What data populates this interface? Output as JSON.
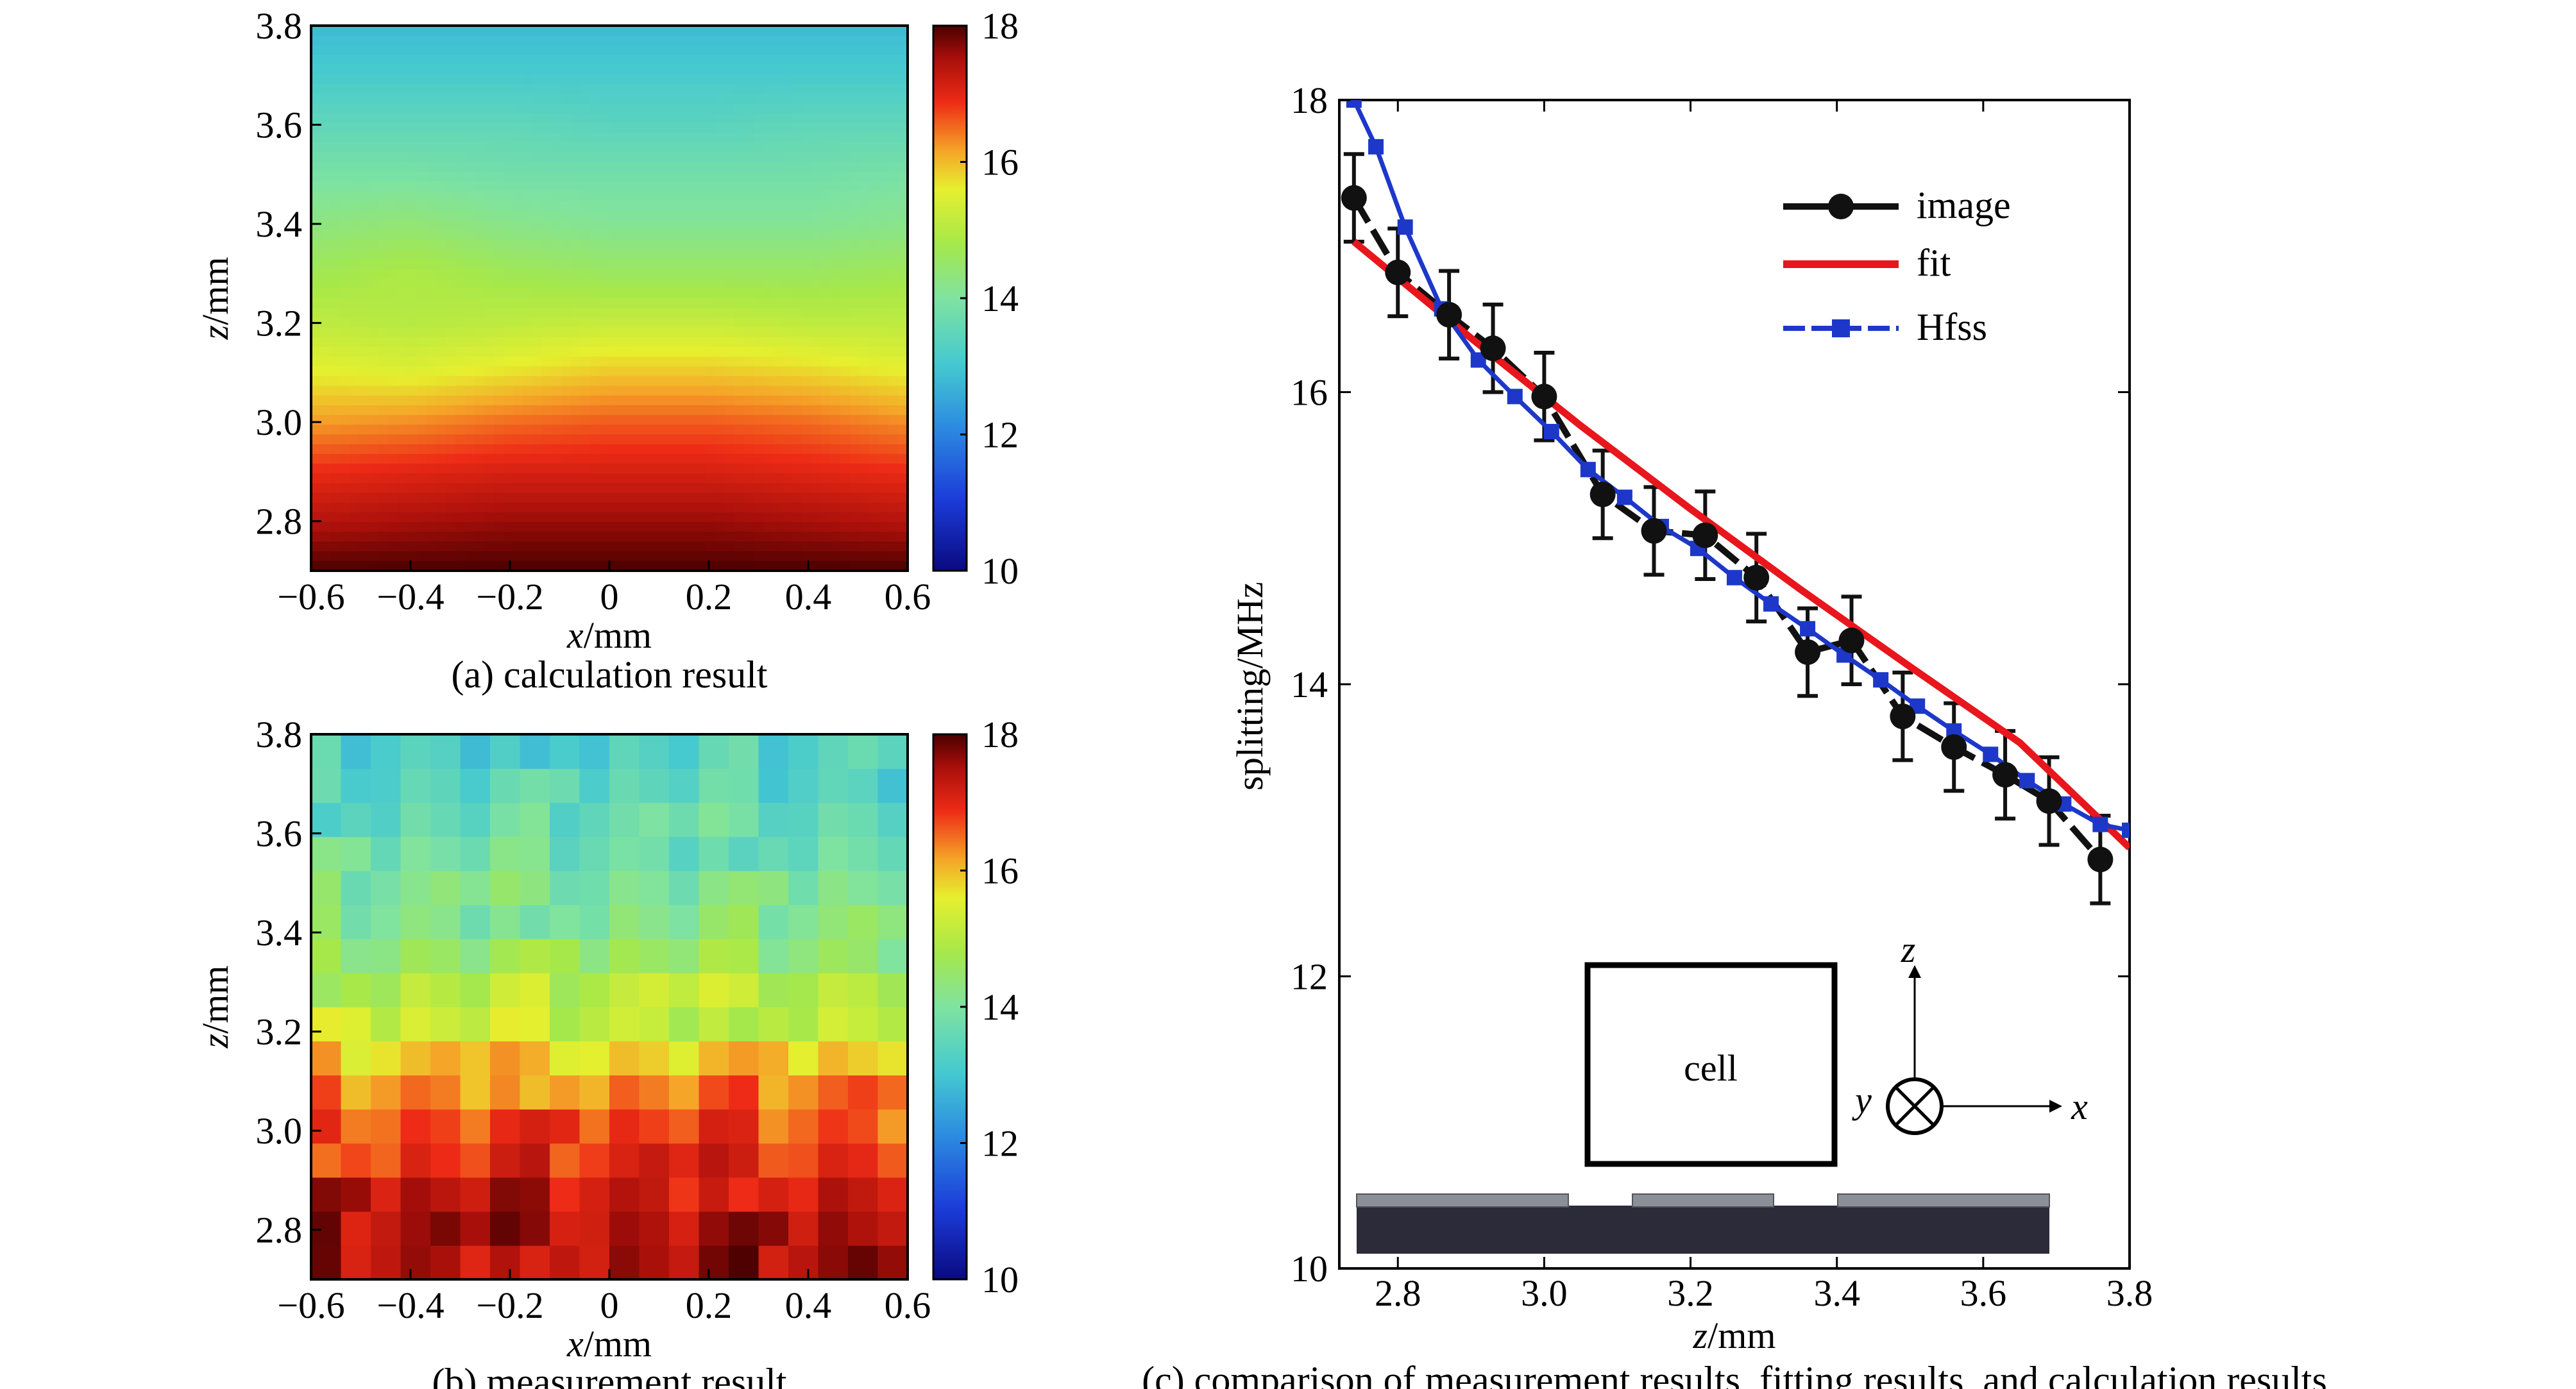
{
  "chart_data": [
    {
      "id": "a",
      "type": "heatmap",
      "caption": "(a) calculation result",
      "xlabel_var": "x",
      "xlabel_unit": "/mm",
      "ylabel_var": "z",
      "ylabel_unit": "/mm",
      "xlim": [
        -0.6,
        0.6
      ],
      "ylim": [
        2.7,
        3.8
      ],
      "x_ticks": [
        "−0.6",
        "−0.4",
        "−0.2",
        "0",
        "0.2",
        "0.4",
        "0.6"
      ],
      "y_ticks": [
        "2.8",
        "3.0",
        "3.2",
        "3.4",
        "3.6",
        "3.8"
      ],
      "colorbar": {
        "range": [
          10,
          18
        ],
        "ticks": [
          "10",
          "12",
          "14",
          "16",
          "18"
        ]
      },
      "x": [
        -0.6,
        -0.4,
        -0.2,
        0.0,
        0.2,
        0.4,
        0.6
      ],
      "z": [
        2.7,
        2.8,
        2.9,
        3.0,
        3.1,
        3.2,
        3.3,
        3.4,
        3.5,
        3.6,
        3.7,
        3.8
      ],
      "values": [
        [
          18.0,
          18.0,
          18.0,
          18.0,
          18.0,
          18.0,
          18.0
        ],
        [
          17.4,
          17.5,
          17.6,
          17.6,
          17.6,
          17.5,
          17.4
        ],
        [
          16.9,
          17.0,
          17.1,
          17.1,
          17.1,
          17.0,
          16.9
        ],
        [
          16.2,
          16.3,
          16.5,
          16.6,
          16.6,
          16.5,
          16.3
        ],
        [
          15.6,
          15.5,
          15.7,
          15.9,
          15.9,
          15.8,
          15.6
        ],
        [
          15.1,
          15.0,
          15.1,
          15.2,
          15.2,
          15.1,
          15.1
        ],
        [
          14.7,
          14.9,
          14.7,
          14.6,
          14.6,
          14.6,
          14.7
        ],
        [
          14.3,
          14.4,
          14.2,
          14.1,
          14.1,
          14.1,
          14.2
        ],
        [
          13.9,
          13.9,
          13.8,
          13.8,
          13.8,
          13.8,
          13.9
        ],
        [
          13.5,
          13.5,
          13.5,
          13.4,
          13.4,
          13.5,
          13.5
        ],
        [
          13.1,
          13.1,
          13.1,
          13.1,
          13.1,
          13.1,
          13.1
        ],
        [
          12.8,
          12.8,
          12.8,
          12.8,
          12.8,
          12.8,
          12.8
        ]
      ]
    },
    {
      "id": "b",
      "type": "heatmap",
      "caption": "(b) measurement result",
      "xlabel_var": "x",
      "xlabel_unit": "/mm",
      "ylabel_var": "z",
      "ylabel_unit": "/mm",
      "xlim": [
        -0.6,
        0.6
      ],
      "ylim": [
        2.7,
        3.8
      ],
      "x_ticks": [
        "−0.6",
        "−0.4",
        "−0.2",
        "0",
        "0.2",
        "0.4",
        "0.6"
      ],
      "y_ticks": [
        "2.8",
        "3.0",
        "3.2",
        "3.4",
        "3.6",
        "3.8"
      ],
      "colorbar": {
        "range": [
          10,
          18
        ],
        "ticks": [
          "10",
          "12",
          "14",
          "16",
          "18"
        ]
      },
      "row_means": [
        17.5,
        17.4,
        17.3,
        16.9,
        16.7,
        16.4,
        15.8,
        15.2,
        15.0,
        14.5,
        14.2,
        14.0,
        13.8,
        13.6,
        13.4,
        13.3
      ],
      "noise": [
        0.6,
        -0.4,
        0.3,
        -0.7,
        0.5,
        0.1,
        -0.3,
        0.8,
        -0.5,
        0.2,
        -0.6,
        0.4,
        0.0,
        -0.2,
        0.7,
        -0.8,
        0.3,
        0.5,
        -0.1,
        0.6,
        -0.4,
        -0.7,
        0.2,
        0.4,
        -0.3,
        0.8,
        0.1,
        -0.6,
        0.5,
        -0.2,
        0.3,
        -0.5,
        0.7,
        0.0,
        -0.4
      ]
    },
    {
      "id": "c",
      "type": "line",
      "caption": "(c) comparison of measurement results, fitting results, and calculation results",
      "xlabel_var": "z",
      "xlabel_unit": "/mm",
      "ylabel": "splitting/MHz",
      "xlim": [
        2.72,
        3.8
      ],
      "ylim": [
        10,
        18
      ],
      "x_ticks": [
        2.8,
        3.0,
        3.2,
        3.4,
        3.6,
        3.8
      ],
      "x_tick_labels": [
        "2.8",
        "3.0",
        "3.2",
        "3.4",
        "3.6",
        "3.8"
      ],
      "y_ticks": [
        10,
        12,
        14,
        16,
        18
      ],
      "y_tick_labels": [
        "10",
        "12",
        "14",
        "16",
        "18"
      ],
      "legend_position": "top-right",
      "series": [
        {
          "name": "image",
          "color": "#111111",
          "marker": "circle",
          "x": [
            2.74,
            2.8,
            2.87,
            2.93,
            3.0,
            3.08,
            3.15,
            3.22,
            3.29,
            3.36,
            3.42,
            3.49,
            3.56,
            3.63,
            3.69,
            3.76
          ],
          "y": [
            17.33,
            16.82,
            16.53,
            16.3,
            15.97,
            15.3,
            15.05,
            15.02,
            14.73,
            14.22,
            14.3,
            13.78,
            13.57,
            13.38,
            13.2,
            12.8
          ],
          "err": [
            0.3,
            0.3,
            0.3,
            0.3,
            0.3,
            0.3,
            0.3,
            0.3,
            0.3,
            0.3,
            0.3,
            0.3,
            0.3,
            0.3,
            0.3,
            0.3
          ]
        },
        {
          "name": "fit",
          "color": "#e8161d",
          "marker": "none",
          "x": [
            2.74,
            2.9,
            3.05,
            3.2,
            3.35,
            3.5,
            3.65,
            3.8
          ],
          "y": [
            17.03,
            16.37,
            15.77,
            15.2,
            14.65,
            14.12,
            13.6,
            12.88
          ]
        },
        {
          "name": "Hfss",
          "color": "#1d38c9",
          "marker": "square",
          "x": [
            2.74,
            2.77,
            2.81,
            2.86,
            2.91,
            2.96,
            3.01,
            3.06,
            3.11,
            3.16,
            3.21,
            3.26,
            3.31,
            3.36,
            3.41,
            3.46,
            3.51,
            3.56,
            3.61,
            3.66,
            3.71,
            3.76,
            3.8
          ],
          "y": [
            18.0,
            17.68,
            17.13,
            16.57,
            16.22,
            15.97,
            15.73,
            15.47,
            15.28,
            15.08,
            14.93,
            14.73,
            14.55,
            14.38,
            14.2,
            14.03,
            13.85,
            13.68,
            13.52,
            13.34,
            13.18,
            13.04,
            13.0
          ]
        }
      ],
      "inset": {
        "cell_label": "cell",
        "axis_z": "z",
        "axis_y": "y",
        "axis_x": "x"
      }
    }
  ]
}
